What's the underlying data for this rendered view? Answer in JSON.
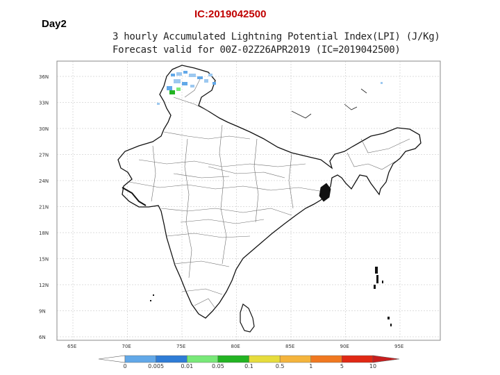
{
  "day_label": "Day2",
  "ic_label": "IC:2019042500",
  "title_line1": "3 hourly Accumulated Lightning Potential Index(LPI) (J/Kg)",
  "title_line2": "Forecast valid for 00Z-02Z26APR2019 (IC=2019042500)",
  "lat_ticks": [
    "36N",
    "33N",
    "30N",
    "27N",
    "24N",
    "21N",
    "18N",
    "15N",
    "12N",
    "9N",
    "6N"
  ],
  "lon_ticks": [
    "65E",
    "70E",
    "75E",
    "80E",
    "85E",
    "90E",
    "95E"
  ],
  "colorbar": {
    "colors": [
      "#62a8e8",
      "#2e7cd6",
      "#78e878",
      "#22b422",
      "#e6dc3c",
      "#f4b43c",
      "#f07820",
      "#e02814"
    ],
    "labels": [
      "0",
      "0.005",
      "0.01",
      "0.05",
      "0.1",
      "0.5",
      "1",
      "5",
      "10"
    ],
    "under_color": "#ffffff",
    "over_color": "#c81e1e"
  }
}
